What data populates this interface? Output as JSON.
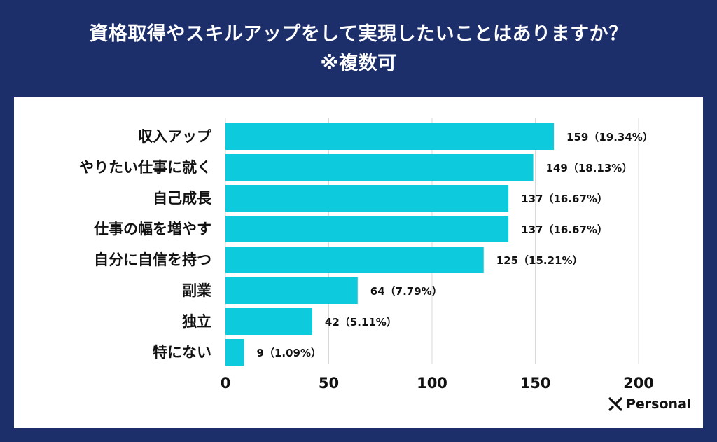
{
  "title": {
    "line1": "資格取得やスキルアップをして実現したいことはありますか？",
    "line2": "※複数可"
  },
  "brand": {
    "name": "Personal"
  },
  "colors": {
    "bar": "#0dcadc",
    "background": "#1d2f6a",
    "panel": "#ffffff",
    "grid": "#d9d9d9",
    "text": "#111111"
  },
  "chart_data": {
    "type": "bar",
    "orientation": "horizontal",
    "categories": [
      "収入アップ",
      "やりたい仕事に就く",
      "自己成長",
      "仕事の幅を増やす",
      "自分に自信を持つ",
      "副業",
      "独立",
      "特にない"
    ],
    "values": [
      159,
      149,
      137,
      137,
      125,
      64,
      42,
      9
    ],
    "value_labels": [
      "159（19.34%）",
      "149（18.13%）",
      "137（16.67%）",
      "137（16.67%）",
      "125（15.21%）",
      "64（7.79%）",
      "42（5.11%）",
      "9（1.09%）"
    ],
    "xlim": [
      0,
      200
    ],
    "xticks": [
      0,
      50,
      100,
      150,
      200
    ],
    "grid": true
  }
}
